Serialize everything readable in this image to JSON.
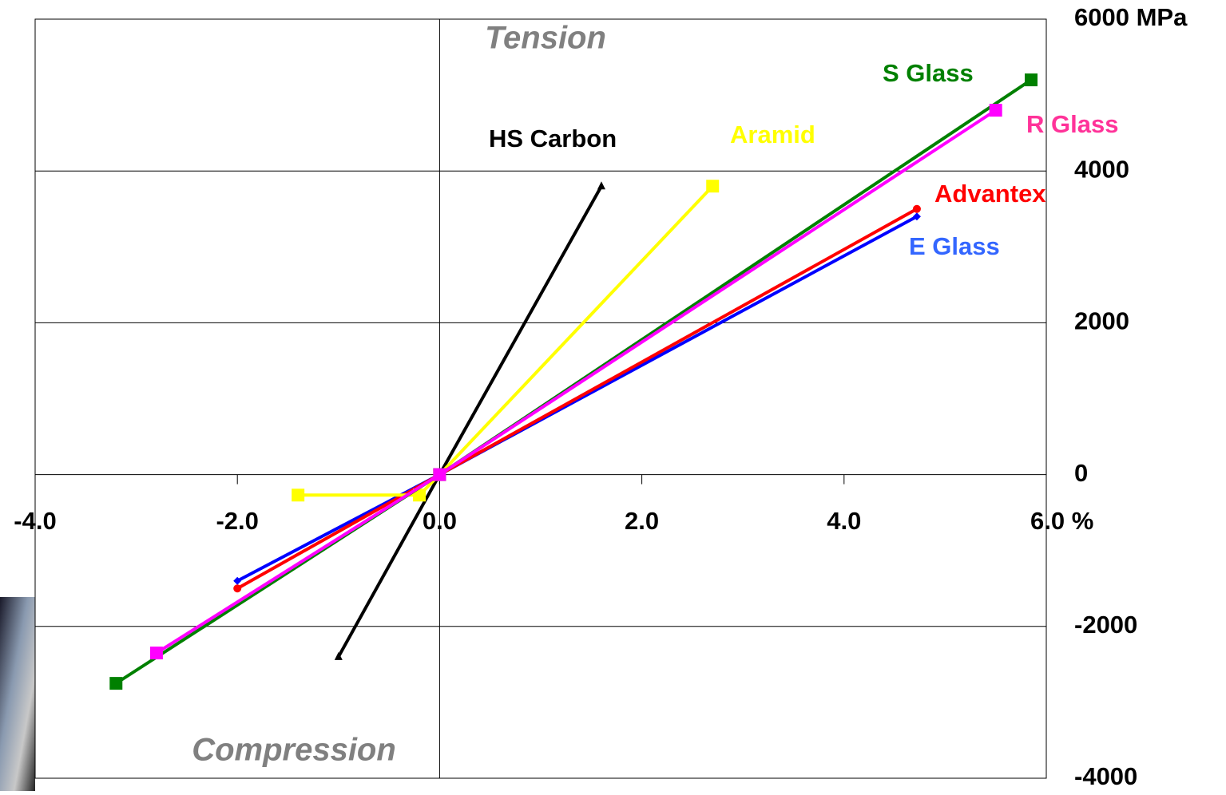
{
  "chart_data": {
    "type": "line",
    "annotations": [
      "Tension",
      "Compression"
    ],
    "xlim": [
      -4,
      6
    ],
    "ylim": [
      -4000,
      6000
    ],
    "xticks": [
      {
        "value": -4,
        "label": "-4.0"
      },
      {
        "value": -2,
        "label": "-2.0"
      },
      {
        "value": 0,
        "label": "0.0"
      },
      {
        "value": 2,
        "label": "2.0"
      },
      {
        "value": 4,
        "label": "4.0"
      },
      {
        "value": 6,
        "label": "6.0 %"
      }
    ],
    "yticks": [
      {
        "value": 6000,
        "label": "6000 MPa"
      },
      4000,
      2000,
      0,
      -2000,
      -4000
    ],
    "grid": true,
    "series": [
      {
        "name": "E Glass",
        "color": "#0000ff",
        "label_color": "#3366ff",
        "marker": "diamond",
        "x": [
          -2.0,
          0,
          4.72
        ],
        "values": [
          -1400,
          0,
          3400
        ]
      },
      {
        "name": "Advantex",
        "color": "#ff0000",
        "label_color": "#ff0000",
        "marker": "circle",
        "x": [
          -2.0,
          0,
          4.72
        ],
        "values": [
          -1500,
          0,
          3500
        ]
      },
      {
        "name": "HS Carbon",
        "color": "#000000",
        "label_color": "#000000",
        "marker": "triangle",
        "x": [
          -1.0,
          0,
          1.6
        ],
        "values": [
          -2400,
          0,
          3800
        ]
      },
      {
        "name": "Aramid",
        "color": "#ffff00",
        "label_color": "#ffff00",
        "marker": "square",
        "x": [
          -1.4,
          -0.2,
          0,
          2.7
        ],
        "values": [
          -270,
          -270,
          0,
          3800
        ]
      },
      {
        "name": "S Glass",
        "color": "#008000",
        "label_color": "#008000",
        "marker": "square",
        "x": [
          -3.2,
          0,
          5.85
        ],
        "values": [
          -2750,
          0,
          5200
        ]
      },
      {
        "name": "R Glass",
        "color": "#ff00ff",
        "label_color": "#ff3399",
        "marker": "square",
        "x": [
          -2.8,
          0,
          5.5
        ],
        "values": [
          -2350,
          0,
          4800
        ]
      }
    ]
  }
}
